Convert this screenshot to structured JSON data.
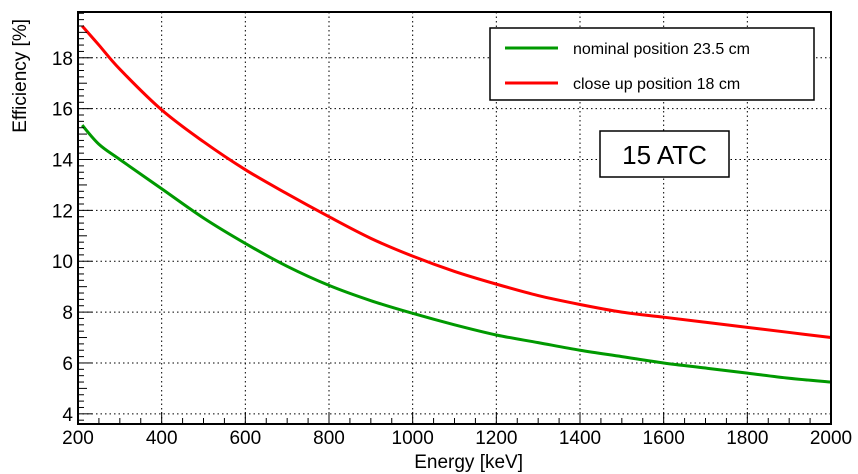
{
  "chart_data": {
    "type": "line",
    "title": "",
    "xlabel": "Energy [keV]",
    "ylabel": "Efficiency [%]",
    "xlim": [
      200,
      2000
    ],
    "ylim": [
      3.6,
      19.8
    ],
    "grid": true,
    "legend_position": "top-right",
    "x_ticks": [
      200,
      400,
      600,
      800,
      1000,
      1200,
      1400,
      1600,
      1800,
      2000
    ],
    "y_ticks": [
      4,
      6,
      8,
      10,
      12,
      14,
      16,
      18
    ],
    "annotation": "15 ATC",
    "series": [
      {
        "name": "nominal position 23.5 cm",
        "color": "#009900",
        "x": [
          210,
          250,
          300,
          400,
          500,
          600,
          700,
          800,
          900,
          1000,
          1100,
          1200,
          1300,
          1400,
          1500,
          1600,
          1700,
          1800,
          1900,
          2000
        ],
        "y": [
          15.35,
          14.6,
          14.0,
          12.85,
          11.7,
          10.7,
          9.8,
          9.05,
          8.45,
          7.95,
          7.5,
          7.1,
          6.8,
          6.5,
          6.25,
          6.0,
          5.8,
          5.6,
          5.4,
          5.25
        ]
      },
      {
        "name": "close up position 18 cm",
        "color": "#ff0000",
        "x": [
          210,
          250,
          300,
          400,
          500,
          600,
          700,
          800,
          900,
          1000,
          1100,
          1200,
          1300,
          1400,
          1500,
          1600,
          1700,
          1800,
          1900,
          2000
        ],
        "y": [
          19.25,
          18.5,
          17.55,
          15.95,
          14.7,
          13.6,
          12.65,
          11.75,
          10.9,
          10.2,
          9.6,
          9.1,
          8.65,
          8.3,
          8.0,
          7.8,
          7.6,
          7.4,
          7.2,
          7.0
        ]
      }
    ]
  }
}
